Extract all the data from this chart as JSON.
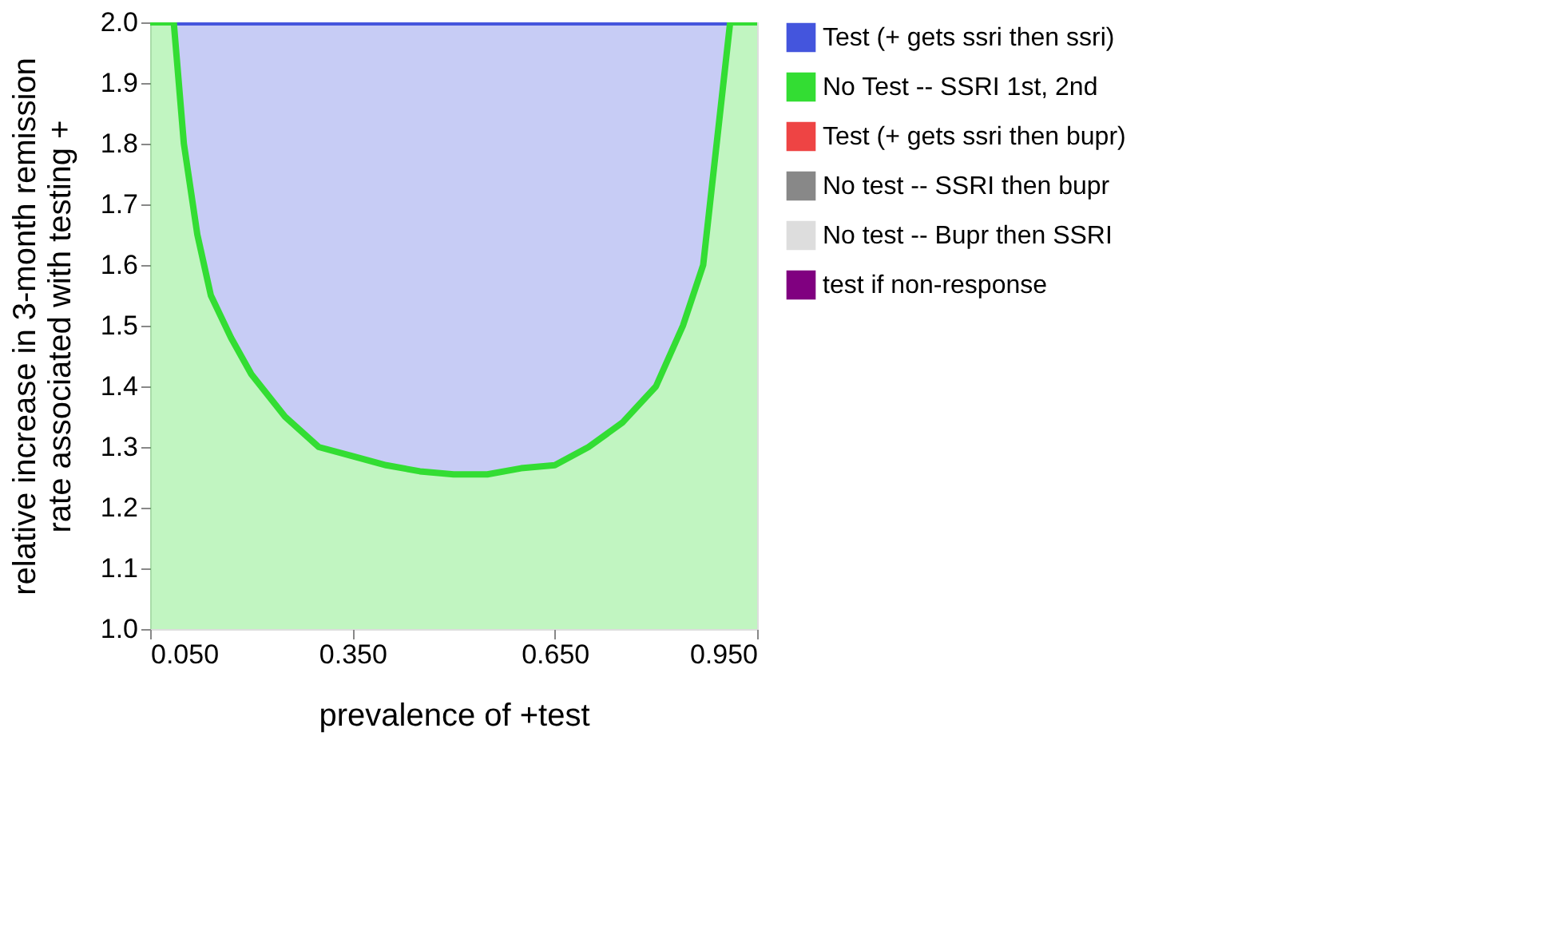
{
  "chart_data": {
    "type": "area",
    "xlabel": "prevalence of +test",
    "ylabel": "relative increase in 3-month remission rate associated with testing +",
    "x": [
      0.05,
      0.085,
      0.1,
      0.12,
      0.14,
      0.17,
      0.2,
      0.25,
      0.3,
      0.35,
      0.4,
      0.45,
      0.5,
      0.55,
      0.6,
      0.65,
      0.7,
      0.75,
      0.8,
      0.84,
      0.87,
      0.89,
      0.91,
      0.95
    ],
    "series": [
      {
        "name": "Test (+ gets ssri then ssri)",
        "color": "#4455dd",
        "values": [
          null,
          2.0,
          2.0,
          2.0,
          2.0,
          2.0,
          2.0,
          2.0,
          2.0,
          2.0,
          2.0,
          2.0,
          2.0,
          2.0,
          2.0,
          2.0,
          2.0,
          2.0,
          2.0,
          2.0,
          2.0,
          2.0,
          2.0,
          null
        ]
      },
      {
        "name": "No Test -- SSRI 1st, 2nd",
        "color": "#33dd33",
        "values": [
          2.0,
          2.0,
          1.8,
          1.65,
          1.55,
          1.48,
          1.42,
          1.35,
          1.3,
          1.285,
          1.27,
          1.26,
          1.255,
          1.255,
          1.265,
          1.27,
          1.3,
          1.34,
          1.4,
          1.5,
          1.6,
          1.8,
          2.0,
          2.0
        ]
      },
      {
        "name": "Test (+ gets ssri then bupr)",
        "color": "#ee4444",
        "values": [
          null,
          null,
          null,
          null,
          null,
          null,
          null,
          null,
          null,
          null,
          null,
          null,
          null,
          null,
          null,
          null,
          null,
          null,
          null,
          null,
          null,
          null,
          null,
          null
        ]
      },
      {
        "name": "No test -- SSRI then bupr",
        "color": "#888888",
        "values": [
          null,
          null,
          null,
          null,
          null,
          null,
          null,
          null,
          null,
          null,
          null,
          null,
          null,
          null,
          null,
          null,
          null,
          null,
          null,
          null,
          null,
          null,
          null,
          null
        ]
      },
      {
        "name": "No test -- Bupr then SSRI",
        "color": "#dddddd",
        "values": [
          null,
          null,
          null,
          null,
          null,
          null,
          null,
          null,
          null,
          null,
          null,
          null,
          null,
          null,
          null,
          null,
          null,
          null,
          null,
          null,
          null,
          null,
          null,
          null
        ]
      },
      {
        "name": "test if non-response",
        "color": "#800080",
        "values": [
          null,
          null,
          null,
          null,
          null,
          null,
          null,
          null,
          null,
          null,
          null,
          null,
          null,
          null,
          null,
          null,
          null,
          null,
          null,
          null,
          null,
          null,
          null,
          null
        ]
      }
    ],
    "xlim": [
      0.05,
      0.95
    ],
    "xticks": [
      {
        "value": 0.05,
        "label": "0.050"
      },
      {
        "value": 0.35,
        "label": "0.350"
      },
      {
        "value": 0.65,
        "label": "0.650"
      },
      {
        "value": 0.95,
        "label": "0.950"
      }
    ],
    "ylim": [
      1.0,
      2.0
    ],
    "yticks": [
      {
        "value": 1.0,
        "label": "1.0"
      },
      {
        "value": 1.1,
        "label": "1.1"
      },
      {
        "value": 1.2,
        "label": "1.2"
      },
      {
        "value": 1.3,
        "label": "1.3"
      },
      {
        "value": 1.4,
        "label": "1.4"
      },
      {
        "value": 1.5,
        "label": "1.5"
      },
      {
        "value": 1.6,
        "label": "1.6"
      },
      {
        "value": 1.7,
        "label": "1.7"
      },
      {
        "value": 1.8,
        "label": "1.8"
      },
      {
        "value": 1.9,
        "label": "1.9"
      },
      {
        "value": 2.0,
        "label": "2.0"
      }
    ],
    "legend": "right"
  }
}
